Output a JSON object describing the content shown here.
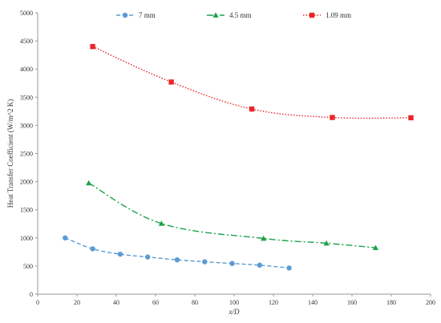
{
  "chart_data": {
    "type": "line",
    "xlabel": "x/D",
    "ylabel": "Heat Transfer Coefficient (W/m^2 K)",
    "xlim": [
      0,
      200
    ],
    "ylim": [
      0,
      5000
    ],
    "x_ticks": [
      "0",
      "20",
      "40",
      "60",
      "80",
      "100",
      "120",
      "140",
      "160",
      "180",
      "200"
    ],
    "y_ticks": [
      "0",
      "500",
      "1000",
      "1500",
      "2000",
      "2500",
      "3000",
      "3500",
      "4000",
      "4500",
      "5000"
    ],
    "grid": false,
    "legend_position": "top",
    "series": [
      {
        "name": "7 mm",
        "color": "#5b9bd5",
        "marker": "circle",
        "line_style": "dashed",
        "x": [
          14,
          28,
          42,
          56,
          71,
          85,
          99,
          113,
          128
        ],
        "y": [
          1000,
          805,
          710,
          660,
          610,
          575,
          545,
          515,
          465
        ]
      },
      {
        "name": "4.5 mm",
        "color": "#1aa34a",
        "marker": "triangle",
        "line_style": "dash-dot",
        "x": [
          26,
          63,
          115,
          147,
          172
        ],
        "y": [
          1975,
          1255,
          990,
          905,
          825
        ]
      },
      {
        "name": "1.09 mm",
        "color": "#e8262a",
        "marker": "square",
        "line_style": "dotted",
        "x": [
          28,
          68,
          109,
          150,
          190
        ],
        "y": [
          4400,
          3770,
          3290,
          3140,
          3135
        ]
      }
    ]
  }
}
